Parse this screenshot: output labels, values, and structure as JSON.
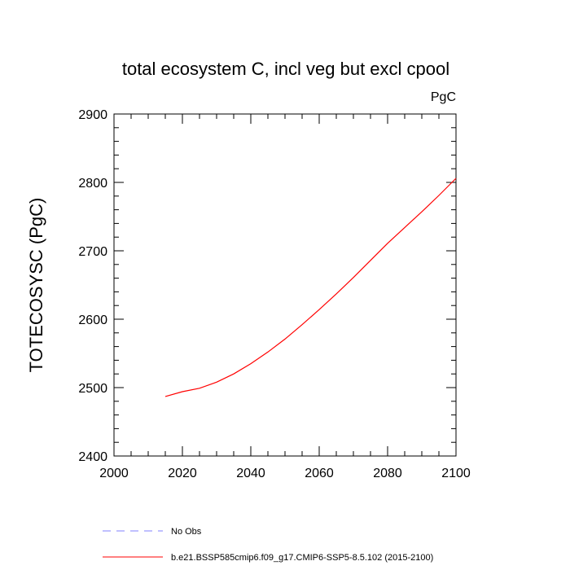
{
  "chart_data": {
    "type": "line",
    "title": "total ecosystem C, incl veg but excl cpool",
    "units": "PgC",
    "xlabel": "",
    "ylabel": "TOTECOSYSC  (PgC)",
    "xlim": [
      2000,
      2100
    ],
    "ylim": [
      2400,
      2900
    ],
    "xticks": [
      "2000",
      "2020",
      "2040",
      "2060",
      "2080",
      "2100"
    ],
    "yticks": [
      "2400",
      "2500",
      "2600",
      "2700",
      "2800",
      "2900"
    ],
    "grid": false,
    "series": [
      {
        "name": "No Obs",
        "color": "#8080ff",
        "style": "dashed",
        "x": [],
        "y": []
      },
      {
        "name": "b.e21.BSSP585cmip6.f09_g17.CMIP6-SSP5-8.5.102 (2015-2100)",
        "color": "#ff0000",
        "style": "solid",
        "x": [
          2015,
          2020,
          2025,
          2030,
          2035,
          2040,
          2045,
          2050,
          2055,
          2060,
          2065,
          2070,
          2075,
          2080,
          2085,
          2090,
          2095,
          2100
        ],
        "y": [
          2487,
          2494,
          2499,
          2508,
          2520,
          2535,
          2552,
          2571,
          2592,
          2614,
          2637,
          2661,
          2686,
          2711,
          2734,
          2757,
          2781,
          2806
        ]
      }
    ]
  }
}
